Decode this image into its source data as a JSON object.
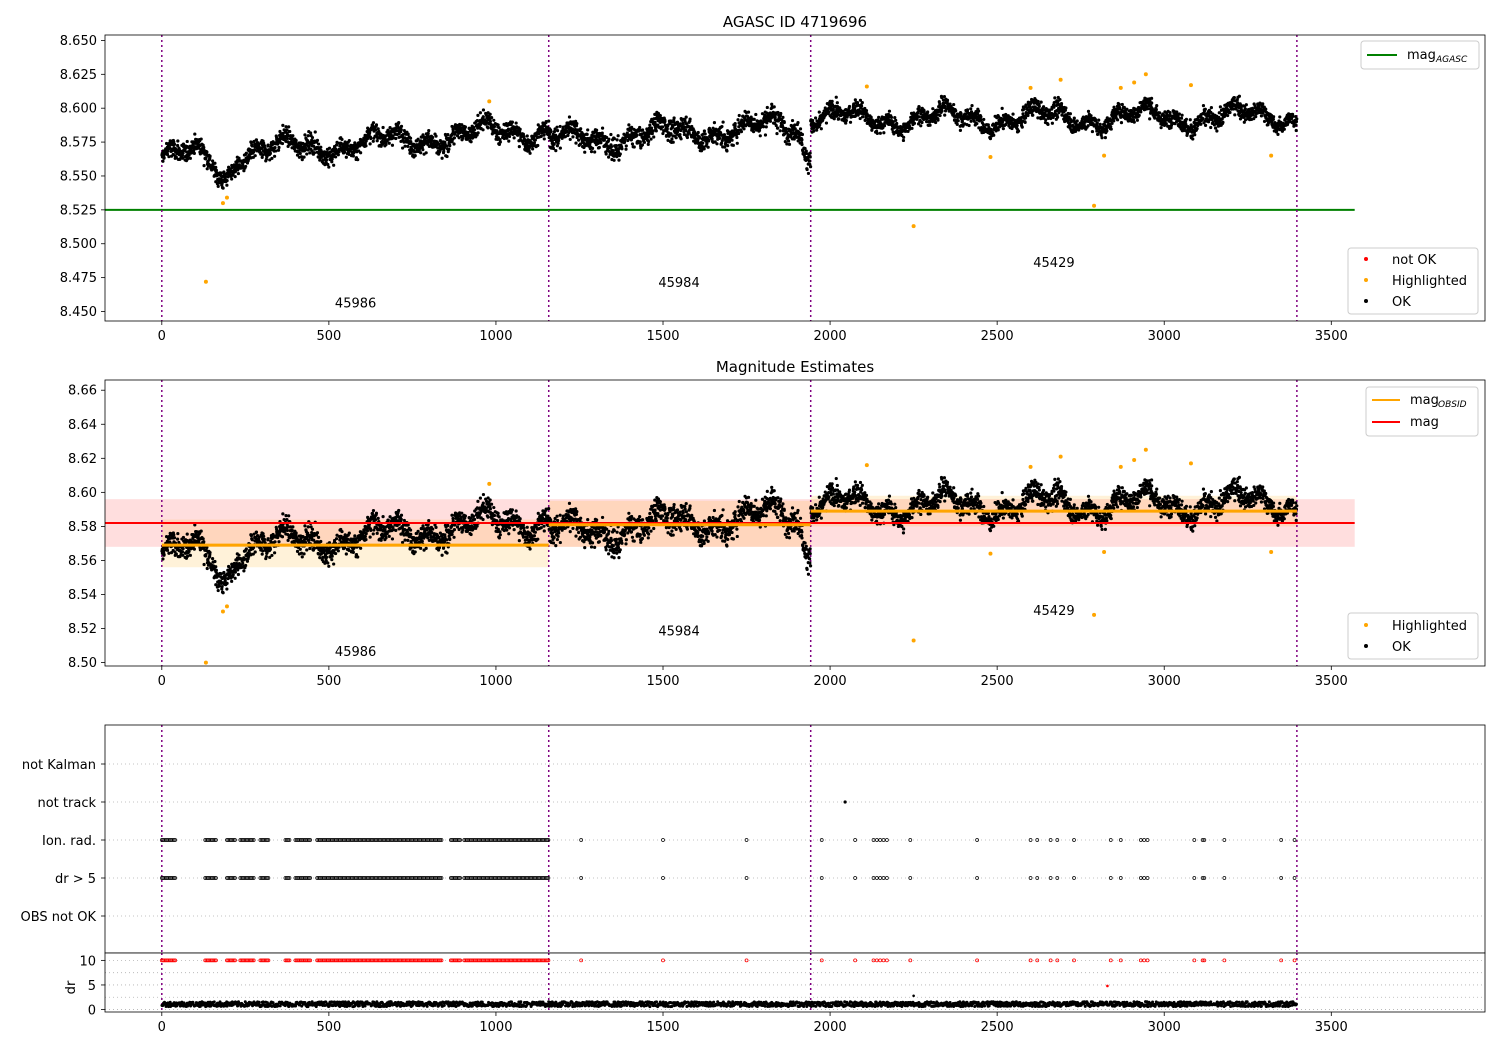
{
  "chart_data": [
    {
      "type": "scatter",
      "title": "AGASC ID 4719696",
      "xlim": [
        -170,
        3960
      ],
      "ylim": [
        8.443,
        8.654
      ],
      "x_ticks": [
        "0",
        "500",
        "1000",
        "1500",
        "2000",
        "2500",
        "3000",
        "3500"
      ],
      "y_ticks": [
        "8.450",
        "8.475",
        "8.500",
        "8.525",
        "8.550",
        "8.575",
        "8.600",
        "8.625",
        "8.650"
      ],
      "obsid_boundaries": [
        0,
        1158,
        1942,
        3397
      ],
      "obsid_labels": [
        {
          "text": "45986",
          "x": 580,
          "y": 8.453
        },
        {
          "text": "45984",
          "x": 1548,
          "y": 8.468
        },
        {
          "text": "45429",
          "x": 2670,
          "y": 8.483
        }
      ],
      "agasc_line": {
        "value": 8.525,
        "x_range": [
          -170,
          3570
        ]
      },
      "segments": [
        {
          "x_range": [
            0,
            1158
          ],
          "start": 8.563,
          "end": 8.585,
          "spread": 0.009
        },
        {
          "x_range": [
            1158,
            1942
          ],
          "start": 8.576,
          "end": 8.588,
          "spread": 0.01
        },
        {
          "x_range": [
            1942,
            3397
          ],
          "start": 8.592,
          "end": 8.594,
          "spread": 0.008
        }
      ],
      "highlighted_points": [
        {
          "x": 132,
          "y": 8.472
        },
        {
          "x": 183,
          "y": 8.53
        },
        {
          "x": 195,
          "y": 8.534
        },
        {
          "x": 980,
          "y": 8.605
        },
        {
          "x": 2110,
          "y": 8.616
        },
        {
          "x": 2250,
          "y": 8.513
        },
        {
          "x": 2480,
          "y": 8.564
        },
        {
          "x": 2600,
          "y": 8.615
        },
        {
          "x": 2690,
          "y": 8.621
        },
        {
          "x": 2790,
          "y": 8.528
        },
        {
          "x": 2820,
          "y": 8.565
        },
        {
          "x": 2870,
          "y": 8.615
        },
        {
          "x": 2910,
          "y": 8.619
        },
        {
          "x": 2945,
          "y": 8.625
        },
        {
          "x": 3080,
          "y": 8.617
        },
        {
          "x": 3320,
          "y": 8.565
        }
      ],
      "legend_lines": [
        {
          "label": "mag",
          "subscript": "AGASC",
          "color": "#008000"
        }
      ],
      "legend_points": [
        {
          "label": "not OK",
          "color": "#ff0000"
        },
        {
          "label": "Highlighted",
          "color": "#ffa500"
        },
        {
          "label": "OK",
          "color": "#000000"
        }
      ]
    },
    {
      "type": "scatter",
      "title": "Magnitude Estimates",
      "xlim": [
        -170,
        3960
      ],
      "ylim": [
        8.498,
        8.666
      ],
      "x_ticks": [
        "0",
        "500",
        "1000",
        "1500",
        "2000",
        "2500",
        "3000",
        "3500"
      ],
      "y_ticks": [
        "8.50",
        "8.52",
        "8.54",
        "8.56",
        "8.58",
        "8.60",
        "8.62",
        "8.64",
        "8.66"
      ],
      "obsid_labels": [
        {
          "text": "45986",
          "x": 580,
          "y": 8.504
        },
        {
          "text": "45984",
          "x": 1548,
          "y": 8.516
        },
        {
          "text": "45429",
          "x": 2670,
          "y": 8.528
        }
      ],
      "mag_band": {
        "value": 8.582,
        "low": 8.568,
        "high": 8.596,
        "x_range": [
          -170,
          3570
        ]
      },
      "obsid_mag": [
        {
          "x_range": [
            0,
            1158
          ],
          "value": 8.569,
          "low": 8.556,
          "high": 8.584
        },
        {
          "x_range": [
            1158,
            1942
          ],
          "value": 8.581,
          "low": 8.568,
          "high": 8.595
        },
        {
          "x_range": [
            1942,
            3397
          ],
          "value": 8.589,
          "low": 8.58,
          "high": 8.598
        }
      ],
      "highlighted_points": [
        {
          "x": 132,
          "y": 8.5
        },
        {
          "x": 183,
          "y": 8.53
        },
        {
          "x": 195,
          "y": 8.533
        },
        {
          "x": 980,
          "y": 8.605
        },
        {
          "x": 2110,
          "y": 8.616
        },
        {
          "x": 2250,
          "y": 8.513
        },
        {
          "x": 2480,
          "y": 8.564
        },
        {
          "x": 2600,
          "y": 8.615
        },
        {
          "x": 2690,
          "y": 8.621
        },
        {
          "x": 2790,
          "y": 8.528
        },
        {
          "x": 2820,
          "y": 8.565
        },
        {
          "x": 2870,
          "y": 8.615
        },
        {
          "x": 2910,
          "y": 8.619
        },
        {
          "x": 2945,
          "y": 8.625
        },
        {
          "x": 3080,
          "y": 8.617
        },
        {
          "x": 3320,
          "y": 8.565
        }
      ],
      "legend_lines": [
        {
          "label": "mag",
          "subscript": "OBSID",
          "color": "#ffa500"
        },
        {
          "label": "mag",
          "subscript": "",
          "color": "#ff0000"
        }
      ],
      "legend_points": [
        {
          "label": "Highlighted",
          "color": "#ffa500"
        },
        {
          "label": "OK",
          "color": "#000000"
        }
      ]
    },
    {
      "type": "scatter",
      "xlim": [
        -170,
        3960
      ],
      "flag_rows": [
        "not Kalman",
        "not track",
        "Ion. rad.",
        "dr > 5",
        "OBS not OK"
      ],
      "flag_markers": {
        "not track": [
          2045
        ],
        "Ion. rad.": {
          "ranges": [
            [
              0,
              40
            ],
            [
              130,
              165
            ],
            [
              195,
              220
            ],
            [
              235,
              275
            ],
            [
              295,
              320
            ],
            [
              370,
              385
            ],
            [
              400,
              445
            ],
            [
              465,
              840
            ],
            [
              865,
              895
            ],
            [
              905,
              1158
            ]
          ],
          "points": [
            1255,
            1500,
            1750,
            1975,
            2075,
            2130,
            2140,
            2150,
            2160,
            2170,
            2240,
            2440,
            2600,
            2620,
            2660,
            2680,
            2730,
            2840,
            2870,
            2930,
            2940,
            2950,
            3090,
            3115,
            3120,
            3180,
            3350,
            3390
          ]
        }
      },
      "dr_panel": {
        "ylabel": "dr",
        "y_ticks": [
          "0",
          "5",
          "10"
        ],
        "ylim": [
          -0.5,
          11.5
        ],
        "outliers": [
          {
            "x": 2250,
            "y": 2.8
          },
          {
            "x": 2830,
            "y": 4.8
          },
          {
            "x": 2850,
            "y": 1.6
          }
        ]
      }
    }
  ]
}
